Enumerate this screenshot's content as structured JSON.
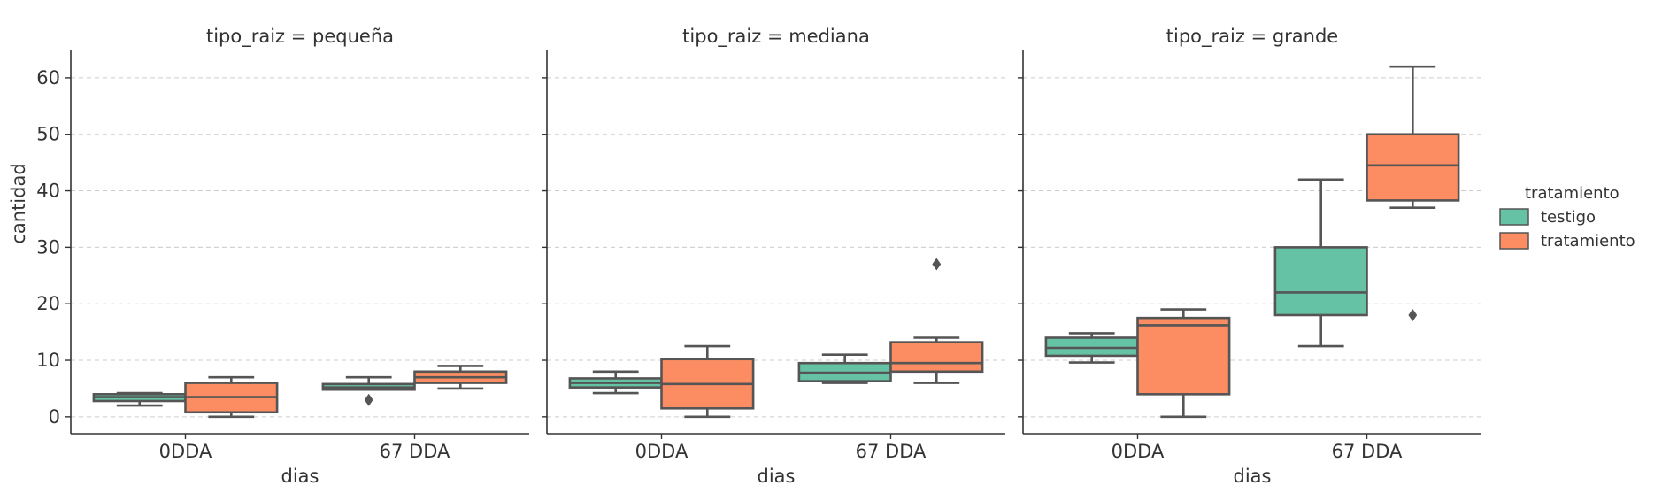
{
  "chart_data": {
    "type": "box",
    "y_label": "cantidad",
    "x_label": "dias",
    "y_ticks": [
      0,
      10,
      20,
      30,
      40,
      50,
      60
    ],
    "y_range": [
      -3,
      65
    ],
    "categories": [
      "0DDA",
      "67 DDA"
    ],
    "legend": {
      "title": "tratamiento",
      "placement": "right",
      "entries": [
        {
          "name": "testigo",
          "color": "#66c2a5"
        },
        {
          "name": "tratamiento",
          "color": "#fc8d62"
        }
      ]
    },
    "facets": [
      {
        "title": "tipo_raiz = pequeña",
        "groups": [
          {
            "category": "0DDA",
            "series": "testigo",
            "whislo": 2,
            "q1": 2.8,
            "med": 3.5,
            "q3": 4,
            "whishi": 4.2,
            "fliers": []
          },
          {
            "category": "0DDA",
            "series": "tratamiento",
            "whislo": 0,
            "q1": 0.8,
            "med": 3.5,
            "q3": 6,
            "whishi": 7,
            "fliers": []
          },
          {
            "category": "67 DDA",
            "series": "testigo",
            "whislo": 4.8,
            "q1": 4.8,
            "med": 5.2,
            "q3": 5.8,
            "whishi": 7,
            "fliers": [
              3
            ]
          },
          {
            "category": "67 DDA",
            "series": "tratamiento",
            "whislo": 5,
            "q1": 6,
            "med": 7,
            "q3": 8,
            "whishi": 9,
            "fliers": []
          }
        ]
      },
      {
        "title": "tipo_raiz = mediana",
        "groups": [
          {
            "category": "0DDA",
            "series": "testigo",
            "whislo": 4.2,
            "q1": 5.2,
            "med": 6,
            "q3": 6.8,
            "whishi": 8,
            "fliers": []
          },
          {
            "category": "0DDA",
            "series": "tratamiento",
            "whislo": 0,
            "q1": 1.5,
            "med": 5.8,
            "q3": 10.2,
            "whishi": 12.5,
            "fliers": []
          },
          {
            "category": "67 DDA",
            "series": "testigo",
            "whislo": 6,
            "q1": 6.3,
            "med": 7.8,
            "q3": 9.5,
            "whishi": 11,
            "fliers": []
          },
          {
            "category": "67 DDA",
            "series": "tratamiento",
            "whislo": 6,
            "q1": 8,
            "med": 9.5,
            "q3": 13.2,
            "whishi": 14,
            "fliers": [
              27
            ]
          }
        ]
      },
      {
        "title": "tipo_raiz = grande",
        "groups": [
          {
            "category": "0DDA",
            "series": "testigo",
            "whislo": 9.6,
            "q1": 10.8,
            "med": 12.2,
            "q3": 14,
            "whishi": 14.8,
            "fliers": []
          },
          {
            "category": "0DDA",
            "series": "tratamiento",
            "whislo": 0,
            "q1": 4,
            "med": 16.2,
            "q3": 17.5,
            "whishi": 19,
            "fliers": []
          },
          {
            "category": "67 DDA",
            "series": "testigo",
            "whislo": 12.5,
            "q1": 18,
            "med": 22,
            "q3": 30,
            "whishi": 42,
            "fliers": []
          },
          {
            "category": "67 DDA",
            "series": "tratamiento",
            "whislo": 37,
            "q1": 38.3,
            "med": 44.5,
            "q3": 50,
            "whishi": 62,
            "fliers": [
              18
            ]
          }
        ]
      }
    ]
  }
}
